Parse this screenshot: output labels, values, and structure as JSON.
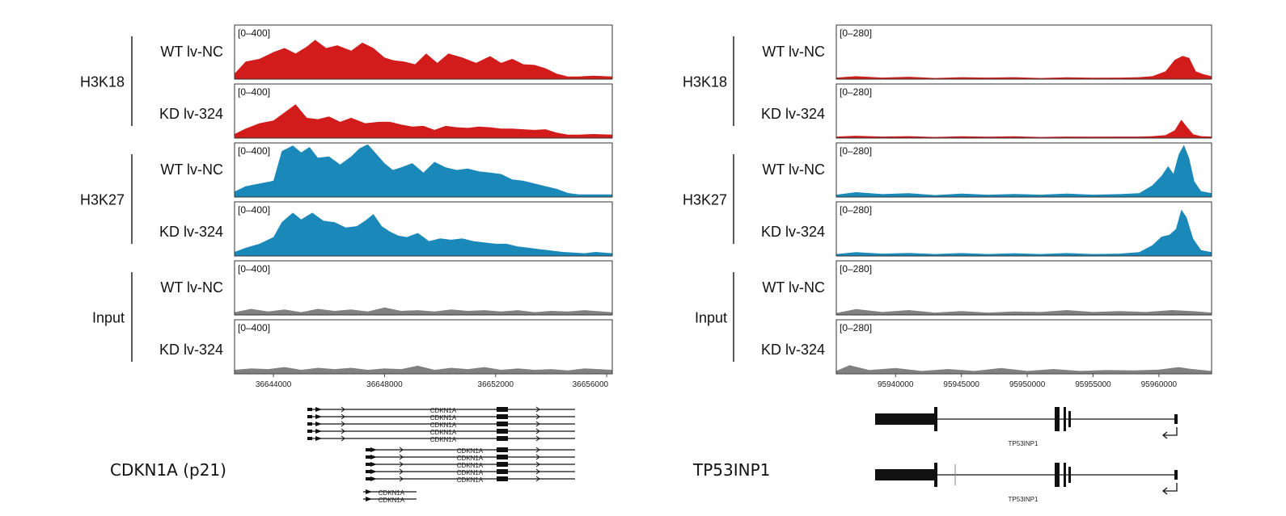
{
  "chart_data": [
    {
      "type": "area",
      "gene": "CDKN1A (p21)",
      "track_scale": "[0–400]",
      "ylim": [
        0,
        400
      ],
      "x_ticks": [
        "36644000",
        "36648000",
        "36652000",
        "36656000"
      ],
      "x_tick_values": [
        36644000,
        36648000,
        36652000,
        36656000
      ],
      "xlim": [
        36642600,
        36656200
      ],
      "groups": [
        {
          "name": "H3K18",
          "color": "#d21b1b"
        },
        {
          "name": "H3K27",
          "color": "#1a88b8"
        },
        {
          "name": "Input",
          "color": "#808080"
        }
      ],
      "tracks": [
        {
          "group": "H3K18",
          "condition": "WT",
          "sample": "lv-NC",
          "x": [
            36642600,
            36643000,
            36643500,
            36644000,
            36644400,
            36644800,
            36645200,
            36645500,
            36645900,
            36646300,
            36646800,
            36647200,
            36647600,
            36648000,
            36648300,
            36648700,
            36649100,
            36649500,
            36649900,
            36650300,
            36650800,
            36651300,
            36651800,
            36652200,
            36652600,
            36653000,
            36653400,
            36653800,
            36654200,
            36654600,
            36655000,
            36655500,
            36656200
          ],
          "y": [
            40,
            130,
            150,
            200,
            230,
            190,
            240,
            290,
            230,
            250,
            210,
            270,
            230,
            160,
            140,
            130,
            110,
            190,
            120,
            190,
            160,
            120,
            170,
            120,
            150,
            110,
            105,
            80,
            40,
            20,
            20,
            25,
            20
          ]
        },
        {
          "group": "H3K18",
          "condition": "KD",
          "sample": "lv-324",
          "x": [
            36642600,
            36643000,
            36643500,
            36644000,
            36644400,
            36644800,
            36645200,
            36645600,
            36646000,
            36646400,
            36646800,
            36647300,
            36647800,
            36648200,
            36648600,
            36649000,
            36649400,
            36649800,
            36650200,
            36650600,
            36651000,
            36651400,
            36651800,
            36652200,
            36652600,
            36653000,
            36653400,
            36653800,
            36654200,
            36654600,
            36655000,
            36655500,
            36656200
          ],
          "y": [
            30,
            70,
            110,
            130,
            190,
            250,
            150,
            140,
            160,
            120,
            150,
            110,
            120,
            120,
            100,
            85,
            90,
            60,
            90,
            80,
            75,
            85,
            80,
            70,
            70,
            65,
            60,
            65,
            40,
            25,
            25,
            30,
            25
          ]
        },
        {
          "group": "H3K27",
          "condition": "WT",
          "sample": "lv-NC",
          "x": [
            36642600,
            36643000,
            36643500,
            36644000,
            36644300,
            36644700,
            36645000,
            36645300,
            36645600,
            36646000,
            36646400,
            36646800,
            36647100,
            36647400,
            36647700,
            36648000,
            36648300,
            36648600,
            36649000,
            36649400,
            36649800,
            36650200,
            36650600,
            36651000,
            36651400,
            36651800,
            36652200,
            36652600,
            36653000,
            36653400,
            36653800,
            36654200,
            36654600,
            36655000,
            36655500,
            36656200
          ],
          "y": [
            40,
            80,
            100,
            120,
            340,
            380,
            330,
            370,
            290,
            300,
            240,
            300,
            360,
            390,
            320,
            250,
            200,
            220,
            250,
            180,
            260,
            220,
            200,
            210,
            190,
            180,
            170,
            130,
            120,
            100,
            80,
            60,
            30,
            20,
            20,
            20
          ]
        },
        {
          "group": "H3K27",
          "condition": "KD",
          "sample": "lv-324",
          "x": [
            36642600,
            36643000,
            36643500,
            36644000,
            36644300,
            36644700,
            36645000,
            36645400,
            36645800,
            36646200,
            36646600,
            36647000,
            36647300,
            36647600,
            36647900,
            36648200,
            36648500,
            36648800,
            36649200,
            36649600,
            36650000,
            36650400,
            36650800,
            36651200,
            36651600,
            36652000,
            36652400,
            36652800,
            36653200,
            36653600,
            36654000,
            36654400,
            36654800,
            36655200,
            36655600,
            36656200
          ],
          "y": [
            30,
            60,
            90,
            140,
            250,
            320,
            270,
            320,
            260,
            250,
            210,
            220,
            260,
            310,
            220,
            180,
            150,
            140,
            170,
            110,
            130,
            120,
            130,
            110,
            100,
            90,
            90,
            70,
            60,
            50,
            40,
            30,
            25,
            20,
            30,
            20
          ]
        },
        {
          "group": "Input",
          "condition": "WT",
          "sample": "lv-NC",
          "x": [
            36642600,
            36643200,
            36643800,
            36644400,
            36645000,
            36645600,
            36646200,
            36646800,
            36647400,
            36648000,
            36648600,
            36649200,
            36649800,
            36650400,
            36651000,
            36651600,
            36652200,
            36652800,
            36653400,
            36654000,
            36654600,
            36655200,
            36656200
          ],
          "y": [
            20,
            45,
            25,
            40,
            20,
            45,
            30,
            40,
            25,
            55,
            30,
            35,
            25,
            40,
            30,
            35,
            25,
            35,
            20,
            30,
            25,
            35,
            20
          ]
        },
        {
          "group": "Input",
          "condition": "KD",
          "sample": "lv-324",
          "x": [
            36642600,
            36643200,
            36643800,
            36644400,
            36645000,
            36645600,
            36646200,
            36646800,
            36647400,
            36648000,
            36648600,
            36649200,
            36649800,
            36650400,
            36651000,
            36651600,
            36652200,
            36652800,
            36653400,
            36654000,
            36654600,
            36655200,
            36656200
          ],
          "y": [
            30,
            40,
            35,
            50,
            30,
            45,
            35,
            45,
            30,
            40,
            35,
            60,
            30,
            45,
            35,
            50,
            30,
            40,
            30,
            35,
            25,
            40,
            30
          ]
        }
      ],
      "isoforms": {
        "label": "CDKN1A",
        "upper_count": 5,
        "middle_count": 5,
        "lower_count": 2
      }
    },
    {
      "type": "area",
      "gene": "TP53INP1",
      "track_scale": "[0–280]",
      "ylim": [
        0,
        280
      ],
      "x_ticks": [
        "95940000",
        "95945000",
        "95950000",
        "95955000",
        "95960000"
      ],
      "x_tick_values": [
        95940000,
        95945000,
        95950000,
        95955000,
        95960000
      ],
      "xlim": [
        95935500,
        95964000
      ],
      "groups": [
        {
          "name": "H3K18",
          "color": "#d21b1b"
        },
        {
          "name": "H3K27",
          "color": "#1a88b8"
        },
        {
          "name": "Input",
          "color": "#808080"
        }
      ],
      "tracks": [
        {
          "group": "H3K18",
          "condition": "WT",
          "sample": "lv-NC",
          "x": [
            95935500,
            95937000,
            95939000,
            95941000,
            95943000,
            95945000,
            95947000,
            95949000,
            95951000,
            95953000,
            95955000,
            95957000,
            95958500,
            95959500,
            95960500,
            95961200,
            95961800,
            95962300,
            95962800,
            95963400,
            95964000
          ],
          "y": [
            8,
            15,
            8,
            12,
            6,
            10,
            8,
            10,
            6,
            9,
            7,
            8,
            10,
            15,
            40,
            100,
            120,
            110,
            40,
            25,
            15
          ]
        },
        {
          "group": "H3K18",
          "condition": "KD",
          "sample": "lv-324",
          "x": [
            95935500,
            95937000,
            95939000,
            95941000,
            95943000,
            95945000,
            95947000,
            95949000,
            95951000,
            95953000,
            95955000,
            95957000,
            95958500,
            95959500,
            95960500,
            95961200,
            95961700,
            95962100,
            95962600,
            95963200,
            95964000
          ],
          "y": [
            8,
            12,
            8,
            10,
            6,
            9,
            7,
            9,
            6,
            8,
            7,
            8,
            8,
            10,
            15,
            40,
            95,
            60,
            20,
            10,
            8
          ]
        },
        {
          "group": "H3K27",
          "condition": "WT",
          "sample": "lv-NC",
          "x": [
            95935500,
            95937000,
            95939000,
            95941000,
            95943000,
            95945000,
            95947000,
            95949000,
            95951000,
            95953000,
            95955000,
            95957000,
            95958500,
            95959500,
            95960200,
            95960700,
            95961100,
            95961500,
            95961900,
            95962300,
            95962700,
            95963200,
            95964000
          ],
          "y": [
            12,
            25,
            15,
            20,
            10,
            18,
            12,
            16,
            12,
            18,
            12,
            15,
            20,
            60,
            110,
            160,
            120,
            220,
            270,
            200,
            80,
            30,
            20
          ]
        },
        {
          "group": "H3K27",
          "condition": "KD",
          "sample": "lv-324",
          "x": [
            95935500,
            95937000,
            95939000,
            95941000,
            95943000,
            95945000,
            95947000,
            95949000,
            95951000,
            95953000,
            95955000,
            95957000,
            95958500,
            95959500,
            95960200,
            95960800,
            95961300,
            95961700,
            95962100,
            95962600,
            95963200,
            95964000
          ],
          "y": [
            10,
            20,
            12,
            16,
            10,
            15,
            10,
            14,
            10,
            15,
            10,
            12,
            20,
            55,
            100,
            110,
            140,
            240,
            200,
            90,
            30,
            20
          ]
        },
        {
          "group": "Input",
          "condition": "WT",
          "sample": "lv-NC",
          "x": [
            95935500,
            95937000,
            95939000,
            95941000,
            95943000,
            95945000,
            95947000,
            95949000,
            95951000,
            95953000,
            95955000,
            95957000,
            95959000,
            95961000,
            95962500,
            95964000
          ],
          "y": [
            10,
            30,
            15,
            25,
            12,
            20,
            12,
            18,
            15,
            25,
            15,
            20,
            15,
            25,
            20,
            12
          ]
        },
        {
          "group": "Input",
          "condition": "KD",
          "sample": "lv-324",
          "x": [
            95935500,
            95936500,
            95938000,
            95940000,
            95942000,
            95944000,
            95946000,
            95948000,
            95950000,
            95952000,
            95954000,
            95956000,
            95958000,
            95960000,
            95961500,
            95962500,
            95964000
          ],
          "y": [
            15,
            45,
            20,
            30,
            15,
            25,
            15,
            30,
            15,
            25,
            15,
            20,
            18,
            22,
            35,
            25,
            15
          ]
        }
      ],
      "isoforms": {
        "label": "TP53INP1",
        "count": 2
      }
    }
  ]
}
